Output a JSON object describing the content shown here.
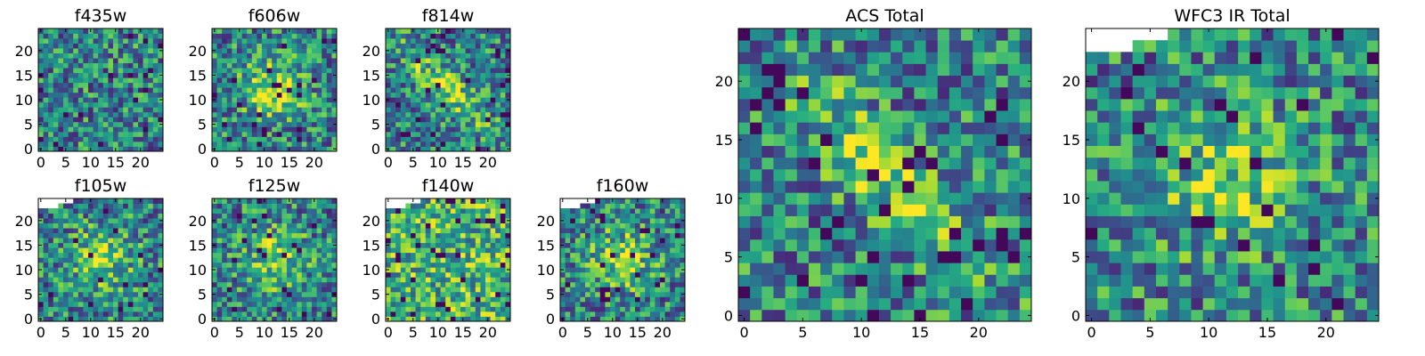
{
  "chart_data": [
    {
      "type": "heatmap",
      "title": "f435w",
      "colormap": "viridis",
      "grid_size": 25,
      "xticks": [
        0,
        5,
        10,
        15,
        20
      ],
      "yticks": [
        0,
        5,
        10,
        15,
        20
      ],
      "blank_top_left": false,
      "structure": "noise"
    },
    {
      "type": "heatmap",
      "title": "f606w",
      "colormap": "viridis",
      "grid_size": 25,
      "xticks": [
        0,
        5,
        10,
        15,
        20
      ],
      "yticks": [
        0,
        5,
        10,
        15,
        20
      ],
      "blank_top_left": false,
      "structure": "central-bright"
    },
    {
      "type": "heatmap",
      "title": "f814w",
      "colormap": "viridis",
      "grid_size": 25,
      "xticks": [
        0,
        5,
        10,
        15,
        20
      ],
      "yticks": [
        0,
        5,
        10,
        15,
        20
      ],
      "blank_top_left": false,
      "structure": "diagonal-bright"
    },
    {
      "type": "heatmap",
      "title": "f105w",
      "colormap": "viridis",
      "grid_size": 25,
      "xticks": [
        0,
        5,
        10,
        15,
        20
      ],
      "yticks": [
        0,
        5,
        10,
        15,
        20
      ],
      "blank_top_left": true,
      "structure": "central-bright"
    },
    {
      "type": "heatmap",
      "title": "f125w",
      "colormap": "viridis",
      "grid_size": 25,
      "xticks": [
        0,
        5,
        10,
        15,
        20
      ],
      "yticks": [
        0,
        5,
        10,
        15,
        20
      ],
      "blank_top_left": false,
      "structure": "central-bright"
    },
    {
      "type": "heatmap",
      "title": "f140w",
      "colormap": "viridis",
      "grid_size": 25,
      "xticks": [
        0,
        5,
        10,
        15,
        20
      ],
      "yticks": [
        0,
        5,
        10,
        15,
        20
      ],
      "blank_top_left": true,
      "structure": "bright-field"
    },
    {
      "type": "heatmap",
      "title": "f160w",
      "colormap": "viridis",
      "grid_size": 25,
      "xticks": [
        0,
        5,
        10,
        15,
        20
      ],
      "yticks": [
        0,
        5,
        10,
        15,
        20
      ],
      "blank_top_left": true,
      "structure": "central-bright"
    },
    {
      "type": "heatmap",
      "title": "ACS Total",
      "colormap": "viridis",
      "grid_size": 25,
      "xticks": [
        0,
        5,
        10,
        15,
        20
      ],
      "yticks": [
        0,
        5,
        10,
        15,
        20
      ],
      "blank_top_left": false,
      "structure": "diagonal-bright"
    },
    {
      "type": "heatmap",
      "title": "WFC3 IR Total",
      "colormap": "viridis",
      "grid_size": 25,
      "xticks": [
        0,
        5,
        10,
        15,
        20
      ],
      "yticks": [
        0,
        5,
        10,
        15,
        20
      ],
      "blank_top_left": true,
      "structure": "central-bright"
    }
  ]
}
